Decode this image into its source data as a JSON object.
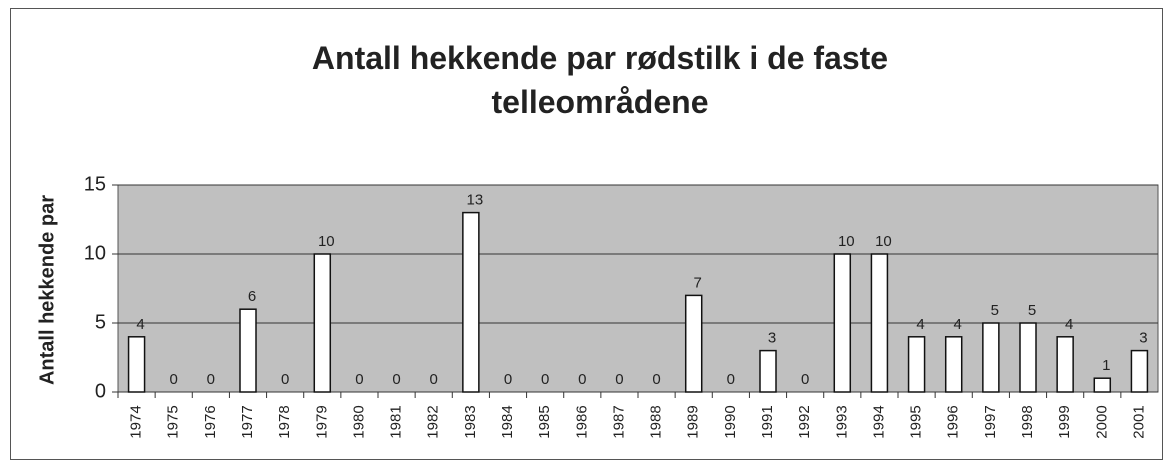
{
  "chart_data": {
    "type": "bar",
    "title": "Antall hekkende par rødstilk i de faste telleområdene",
    "y_label": "Antall hekkende par",
    "categories": [
      "1974",
      "1975",
      "1976",
      "1977",
      "1978",
      "1979",
      "1980",
      "1981",
      "1982",
      "1983",
      "1984",
      "1985",
      "1986",
      "1987",
      "1988",
      "1989",
      "1990",
      "1991",
      "1992",
      "1993",
      "1994",
      "1995",
      "1996",
      "1997",
      "1998",
      "1999",
      "2000",
      "2001"
    ],
    "values": [
      4,
      0,
      0,
      6,
      0,
      10,
      0,
      0,
      0,
      13,
      0,
      0,
      0,
      0,
      0,
      7,
      0,
      3,
      0,
      10,
      10,
      4,
      4,
      5,
      5,
      4,
      1,
      3
    ],
    "color": "#ffffff",
    "ylim": [
      0,
      15
    ],
    "yticks": [
      0,
      5,
      10,
      15
    ],
    "grid": true
  }
}
